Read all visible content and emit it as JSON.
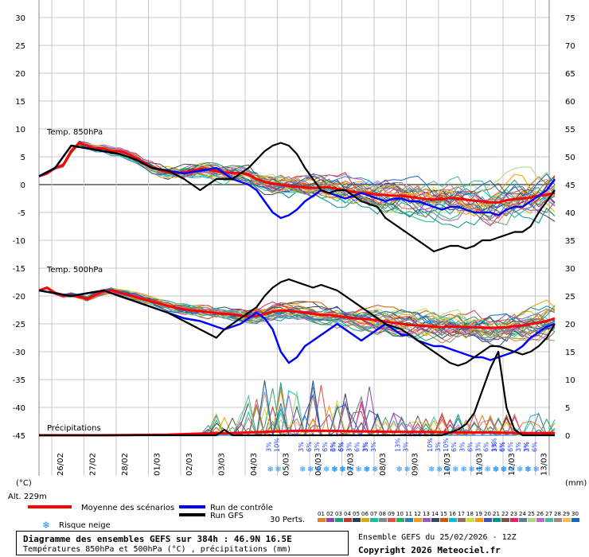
{
  "chart_data": {
    "type": "line",
    "title": "Diagramme des ensembles GEFS sur 384h : 46.9N 16.5E",
    "subtitle": "Températures 850hPa et 500hPa (°C) , précipitations (mm)",
    "ensemble_label": "Ensemble GEFS du 25/02/2026 - 12Z",
    "copyright": "Copyright 2026 Meteociel.fr",
    "altitude": "Alt. 229m",
    "left_unit": "(°C)",
    "right_unit": "(mm)",
    "left_ticks": [
      "30",
      "25",
      "20",
      "15",
      "10",
      "5",
      "0",
      "-5",
      "-10",
      "-15",
      "-20",
      "-25",
      "-30",
      "-35",
      "-40",
      "-45"
    ],
    "right_ticks": [
      "75",
      "70",
      "65",
      "60",
      "55",
      "50",
      "45",
      "40",
      "35",
      "30",
      "25",
      "20",
      "15",
      "10",
      "5",
      "0"
    ],
    "ylim_left": [
      -45,
      30
    ],
    "ylim_right": [
      0,
      75
    ],
    "x_dates": [
      "26/02",
      "27/02",
      "28/02",
      "01/03",
      "02/03",
      "03/03",
      "04/03",
      "05/03",
      "06/03",
      "07/03",
      "08/03",
      "09/03",
      "10/03",
      "11/03",
      "12/03",
      "13/03"
    ],
    "section_labels": [
      "Temp. 850hPa",
      "Temp. 500hPa",
      "Précipitations"
    ],
    "legend": {
      "mean": "Moyenne des scénarios",
      "control": "Run de contrôle",
      "gfs": "Run GFS",
      "snow": "Risque neige",
      "perts": "30 Perts."
    },
    "pert_numbers": [
      "01",
      "02",
      "03",
      "04",
      "05",
      "06",
      "07",
      "08",
      "09",
      "10",
      "11",
      "12",
      "13",
      "14",
      "15",
      "16",
      "17",
      "18",
      "19",
      "20",
      "21",
      "22",
      "23",
      "24",
      "25",
      "26",
      "27",
      "28",
      "29",
      "30"
    ],
    "pert_colors": [
      "#e67e22",
      "#8e44ad",
      "#16a085",
      "#c0392b",
      "#2c3e50",
      "#d4ac0d",
      "#1abc9c",
      "#7f8c8d",
      "#e74c3c",
      "#27ae60",
      "#2980b9",
      "#f39c12",
      "#9b59b6",
      "#34495e",
      "#d35400",
      "#00bcd4",
      "#8d6e63",
      "#cddc39",
      "#ff9800",
      "#3f51b5",
      "#009688",
      "#795548",
      "#e91e63",
      "#607d8b",
      "#aed581",
      "#ba68c8",
      "#4db6ac",
      "#a1887f",
      "#ffb74d",
      "#1565c0"
    ],
    "snow_risk": [
      {
        "date": "05/03",
        "values": [
          "3%",
          "10%"
        ]
      },
      {
        "date": "06/03",
        "values": [
          "3%",
          "6%",
          "3%",
          "6%",
          "3%",
          "6%"
        ]
      },
      {
        "date": "07/03",
        "values": [
          "6%",
          "6%",
          "3%",
          "6%",
          "3%"
        ]
      },
      {
        "date": "08/03",
        "values": [
          "3%",
          "3%"
        ]
      },
      {
        "date": "09/03",
        "values": [
          "13%",
          "3%"
        ]
      },
      {
        "date": "10/03",
        "values": [
          "10%",
          "3%",
          "10%",
          "6%"
        ]
      },
      {
        "date": "11/03",
        "values": [
          "3%",
          "6%",
          "3%",
          "6%",
          "13%",
          "6%"
        ]
      },
      {
        "date": "12/03",
        "values": [
          "3%",
          "6%",
          "6%",
          "3%",
          "3%"
        ]
      },
      {
        "date": "13/03",
        "values": [
          "3%",
          "6%"
        ]
      }
    ],
    "series": [
      {
        "name": "Moyenne des scénarios",
        "level": "850hPa",
        "x": [
          0,
          6,
          12,
          18,
          24,
          30,
          36,
          42,
          48,
          54,
          60,
          66,
          72,
          78,
          84,
          90,
          96,
          102,
          108,
          114,
          120,
          126,
          132,
          138,
          144,
          150,
          156,
          162,
          168,
          174,
          180,
          186,
          192,
          198,
          204,
          210,
          216,
          222,
          228,
          234,
          240,
          246,
          252,
          258,
          264,
          270,
          276,
          282,
          288,
          294,
          300,
          306,
          312,
          318,
          324,
          330,
          336,
          342,
          348,
          354,
          360,
          366,
          372,
          378,
          384
        ],
        "y": [
          1.5,
          2,
          3,
          3.5,
          6,
          7.5,
          7,
          6.5,
          6.5,
          6,
          6,
          5.5,
          4.8,
          4,
          3.2,
          2.6,
          2.2,
          2.1,
          2.2,
          2.5,
          2.8,
          2.7,
          2.4,
          2.2,
          2.1,
          2.1,
          1.8,
          1,
          0.5,
          0.2,
          0,
          -0.3,
          -0.4,
          -0.5,
          -0.6,
          -0.5,
          -0.5,
          -0.8,
          -1,
          -1.3,
          -1.5,
          -1.6,
          -1.8,
          -1.9,
          -2,
          -2,
          -2.2,
          -2.4,
          -2.6,
          -2.7,
          -2.6,
          -2.4,
          -2.5,
          -2.7,
          -2.9,
          -3,
          -3.2,
          -3.2,
          -2.8,
          -2.6,
          -2.5,
          -2.3,
          -2,
          -1.8,
          -1.5
        ]
      },
      {
        "name": "Run de contrôle",
        "level": "850hPa",
        "x": [
          0,
          12,
          18,
          24,
          36,
          48,
          60,
          72,
          84,
          96,
          108,
          120,
          132,
          144,
          150,
          156,
          162,
          168,
          174,
          180,
          186,
          192,
          198,
          204,
          210,
          216,
          222,
          228,
          234,
          240,
          246,
          252,
          258,
          264,
          270,
          276,
          282,
          288,
          294,
          300,
          306,
          312,
          318,
          324,
          330,
          336,
          342,
          348,
          354,
          360,
          366,
          372,
          378,
          384
        ],
        "y": [
          1.5,
          3,
          5,
          7,
          6.5,
          6,
          5.5,
          4.5,
          3,
          2.5,
          2,
          2.5,
          3,
          1,
          0.5,
          0,
          -1,
          -3,
          -5,
          -6,
          -5.5,
          -4.5,
          -3,
          -2,
          -1,
          -1.5,
          -2,
          -2.5,
          -2,
          -1.5,
          -2,
          -2.5,
          -3,
          -2.5,
          -2.5,
          -3,
          -3,
          -3.5,
          -4,
          -4.5,
          -4,
          -4,
          -4.5,
          -5,
          -5,
          -5,
          -5.5,
          -4.5,
          -4,
          -4,
          -3,
          -2,
          -1,
          1
        ]
      },
      {
        "name": "Run GFS",
        "level": "850hPa",
        "x": [
          0,
          12,
          18,
          24,
          36,
          48,
          60,
          72,
          84,
          96,
          108,
          114,
          120,
          126,
          132,
          144,
          150,
          156,
          162,
          168,
          174,
          180,
          186,
          192,
          198,
          204,
          210,
          216,
          222,
          228,
          234,
          240,
          246,
          252,
          258,
          264,
          270,
          276,
          282,
          288,
          294,
          300,
          306,
          312,
          318,
          324,
          330,
          336,
          342,
          348,
          354,
          360,
          366,
          372,
          378,
          384
        ],
        "y": [
          1.5,
          3,
          5,
          7,
          6.5,
          6,
          5.5,
          4.5,
          3,
          2.5,
          1,
          0,
          -1,
          0,
          1,
          1,
          2,
          3,
          4.5,
          6,
          7,
          7.5,
          7,
          5.5,
          3,
          1,
          -1,
          -1.5,
          -1,
          -1,
          -2,
          -3,
          -3.5,
          -4,
          -6,
          -7,
          -8,
          -9,
          -10,
          -11,
          -12,
          -11.5,
          -11,
          -11,
          -11.5,
          -11,
          -10,
          -10,
          -9.5,
          -9,
          -8.5,
          -8.5,
          -7.5,
          -5,
          -3,
          -1
        ]
      },
      {
        "name": "Moyenne des scénarios",
        "level": "500hPa",
        "x": [
          0,
          6,
          12,
          18,
          24,
          30,
          36,
          42,
          48,
          54,
          60,
          66,
          72,
          78,
          84,
          90,
          96,
          102,
          108,
          114,
          120,
          126,
          132,
          138,
          144,
          150,
          156,
          162,
          168,
          174,
          180,
          186,
          192,
          198,
          204,
          210,
          216,
          222,
          228,
          234,
          240,
          246,
          252,
          258,
          264,
          270,
          276,
          282,
          288,
          294,
          300,
          306,
          312,
          318,
          324,
          330,
          336,
          342,
          348,
          354,
          360,
          366,
          372,
          378,
          384
        ],
        "y": [
          -19,
          -18.5,
          -19.5,
          -20,
          -19.8,
          -20.2,
          -20.5,
          -19.8,
          -19.2,
          -19,
          -19.4,
          -19.8,
          -20.2,
          -20.6,
          -21,
          -21.4,
          -21.8,
          -22.1,
          -22.4,
          -22.6,
          -22.7,
          -22.9,
          -23.1,
          -23.2,
          -23.3,
          -23.5,
          -23.7,
          -23.6,
          -23.2,
          -22.8,
          -22.6,
          -22.7,
          -22.8,
          -23,
          -23.2,
          -23.4,
          -23.4,
          -23.6,
          -23.8,
          -24,
          -24.1,
          -24.2,
          -24.4,
          -24.6,
          -24.8,
          -25,
          -25.2,
          -25.3,
          -25.4,
          -25.5,
          -25.6,
          -25.5,
          -25.5,
          -25.6,
          -25.6,
          -25.7,
          -25.7,
          -25.7,
          -25.6,
          -25.4,
          -25.3,
          -25,
          -24.8,
          -24.5,
          -24
        ]
      },
      {
        "name": "Run de contrôle",
        "level": "500hPa",
        "x": [
          0,
          12,
          24,
          36,
          48,
          60,
          72,
          84,
          96,
          108,
          120,
          132,
          138,
          144,
          150,
          156,
          162,
          168,
          174,
          180,
          186,
          192,
          198,
          204,
          210,
          216,
          222,
          228,
          234,
          240,
          246,
          252,
          258,
          264,
          270,
          276,
          282,
          288,
          294,
          300,
          306,
          312,
          318,
          324,
          330,
          336,
          342,
          348,
          354,
          360,
          366,
          372,
          378,
          384
        ],
        "y": [
          -19,
          -19.5,
          -20,
          -19.5,
          -19,
          -20,
          -21,
          -22,
          -23,
          -24,
          -24.5,
          -25.5,
          -26,
          -25.5,
          -25,
          -24,
          -23,
          -24,
          -26,
          -30,
          -32,
          -31,
          -29,
          -28,
          -27,
          -26,
          -25,
          -26,
          -27,
          -28,
          -27,
          -26,
          -25,
          -26,
          -27,
          -27,
          -28,
          -28.5,
          -29,
          -29,
          -29.5,
          -30,
          -30.5,
          -31,
          -31,
          -31.5,
          -31,
          -30.5,
          -30,
          -29,
          -27.5,
          -26.5,
          -25.5,
          -25
        ]
      },
      {
        "name": "Run GFS",
        "level": "500hPa",
        "x": [
          0,
          12,
          24,
          36,
          48,
          60,
          72,
          84,
          96,
          108,
          120,
          132,
          138,
          144,
          150,
          156,
          162,
          168,
          174,
          180,
          186,
          192,
          198,
          204,
          210,
          216,
          222,
          228,
          234,
          240,
          246,
          252,
          258,
          264,
          270,
          276,
          282,
          288,
          294,
          300,
          306,
          312,
          318,
          324,
          330,
          336,
          342,
          348,
          354,
          360,
          366,
          372,
          378,
          384
        ],
        "y": [
          -19,
          -19.5,
          -20,
          -19.5,
          -19,
          -20,
          -21,
          -22,
          -23,
          -24.5,
          -26,
          -27.5,
          -26,
          -25,
          -24,
          -23,
          -22,
          -20,
          -18.5,
          -17.5,
          -17,
          -17.5,
          -18,
          -18.5,
          -18,
          -18.5,
          -19,
          -20,
          -21,
          -22,
          -23,
          -24,
          -25,
          -25.5,
          -26,
          -27,
          -28,
          -29,
          -30,
          -31,
          -32,
          -32.5,
          -32,
          -31,
          -30,
          -29,
          -29,
          -29.5,
          -30,
          -30.5,
          -30,
          -29,
          -27.5,
          -25
        ]
      },
      {
        "name": "Moyenne des scénarios",
        "level": "précipitations",
        "x": [
          0,
          48,
          96,
          120,
          144,
          168,
          192,
          216,
          240,
          264,
          288,
          312,
          336,
          360,
          384
        ],
        "y": [
          0,
          0,
          0.1,
          0.3,
          0.4,
          0.6,
          0.8,
          0.8,
          0.7,
          0.6,
          0.6,
          0.5,
          0.5,
          0.4,
          0.4
        ]
      },
      {
        "name": "Run GFS",
        "level": "précipitations",
        "x": [
          0,
          132,
          138,
          144,
          240,
          300,
          312,
          318,
          324,
          330,
          336,
          342,
          348,
          354,
          360,
          384
        ],
        "y": [
          0,
          0,
          1,
          0,
          0,
          0,
          1,
          2,
          4,
          8,
          12,
          15,
          5,
          1,
          0,
          0
        ]
      }
    ]
  }
}
